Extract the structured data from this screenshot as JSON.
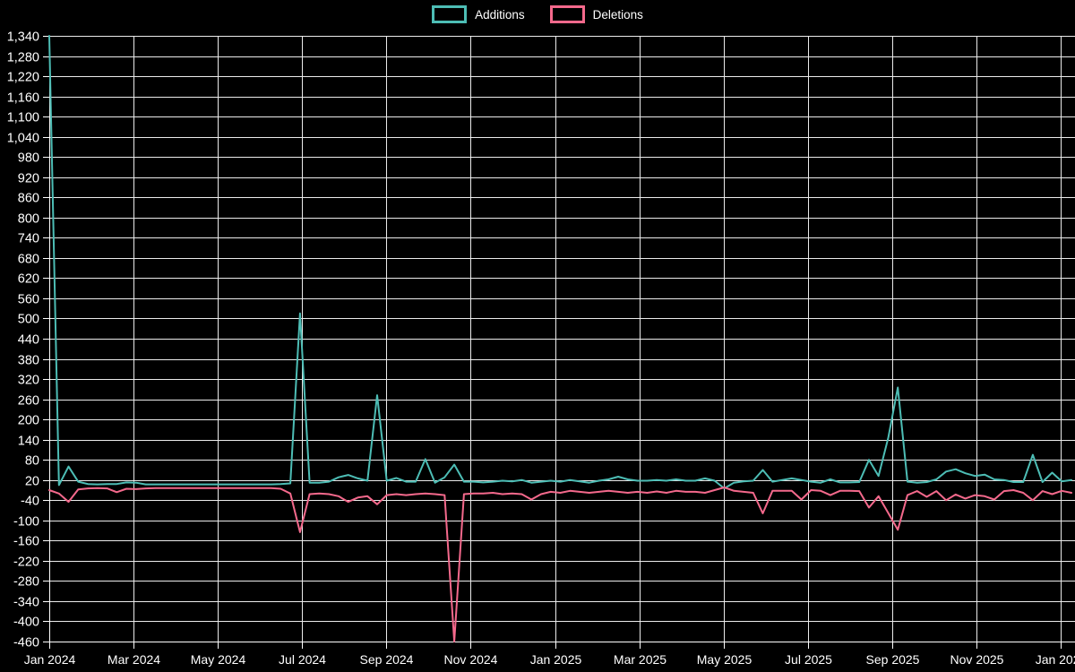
{
  "legend": {
    "items": [
      {
        "label": "Additions",
        "color": "#4dbdb5"
      },
      {
        "label": "Deletions",
        "color": "#f4698c"
      }
    ]
  },
  "chart_data": {
    "type": "line",
    "title": "",
    "xlabel": "",
    "ylabel": "",
    "x_unit": "weekly data points from Jan 2024 to Feb 2026",
    "x_tick_labels": [
      "Jan 2024",
      "Mar 2024",
      "May 2024",
      "Jul 2024",
      "Sep 2024",
      "Nov 2024",
      "Jan 2025",
      "Mar 2025",
      "May 2025",
      "Jul 2025",
      "Sep 2025",
      "Nov 2025",
      "Jan 2026"
    ],
    "y_ticks": [
      -460,
      -400,
      -340,
      -280,
      -220,
      -160,
      -100,
      -40,
      20,
      80,
      140,
      200,
      260,
      320,
      380,
      440,
      500,
      560,
      620,
      680,
      740,
      800,
      860,
      920,
      980,
      1040,
      1100,
      1160,
      1220,
      1280,
      1340
    ],
    "ylim": [
      -460,
      1340
    ],
    "grid": true,
    "legend_position": "top-center",
    "background": "#000000",
    "grid_color": "#ebebeb",
    "axis_color": "#ffffff",
    "text_color": "#ffffff",
    "series": [
      {
        "name": "Additions",
        "color": "#4dbdb5",
        "values": [
          1340,
          5,
          60,
          15,
          8,
          7,
          8,
          8,
          13,
          12,
          7,
          7,
          7,
          7,
          7,
          7,
          7,
          7,
          7,
          7,
          7,
          7,
          7,
          7,
          8,
          10,
          515,
          12,
          12,
          15,
          28,
          35,
          25,
          18,
          272,
          18,
          26,
          15,
          15,
          82,
          12,
          28,
          66,
          15,
          15,
          13,
          15,
          18,
          16,
          20,
          12,
          15,
          18,
          15,
          20,
          16,
          12,
          18,
          22,
          30,
          22,
          18,
          18,
          20,
          18,
          22,
          18,
          18,
          25,
          18,
          -5,
          12,
          16,
          18,
          50,
          15,
          20,
          25,
          20,
          15,
          12,
          22,
          13,
          13,
          14,
          80,
          32,
          145,
          295,
          15,
          12,
          14,
          22,
          45,
          52,
          40,
          32,
          36,
          22,
          20,
          14,
          14,
          95,
          14,
          42,
          16,
          20
        ]
      },
      {
        "name": "Deletions",
        "color": "#f4698c",
        "values": [
          -10,
          -20,
          -45,
          -8,
          -5,
          -4,
          -5,
          -16,
          -6,
          -7,
          -5,
          -4,
          -4,
          -4,
          -4,
          -4,
          -4,
          -4,
          -4,
          -4,
          -4,
          -4,
          -4,
          -4,
          -6,
          -20,
          -135,
          -22,
          -20,
          -22,
          -28,
          -45,
          -32,
          -28,
          -52,
          -25,
          -22,
          -25,
          -22,
          -20,
          -22,
          -25,
          -460,
          -22,
          -20,
          -20,
          -18,
          -22,
          -20,
          -22,
          -38,
          -22,
          -15,
          -18,
          -12,
          -15,
          -18,
          -15,
          -12,
          -15,
          -18,
          -15,
          -18,
          -14,
          -18,
          -12,
          -15,
          -15,
          -18,
          -10,
          -2,
          -12,
          -15,
          -18,
          -79,
          -12,
          -12,
          -12,
          -38,
          -10,
          -12,
          -25,
          -12,
          -12,
          -13,
          -62,
          -28,
          -78,
          -128,
          -25,
          -13,
          -30,
          -13,
          -40,
          -23,
          -35,
          -25,
          -28,
          -38,
          -13,
          -10,
          -18,
          -40,
          -13,
          -22,
          -12,
          -18
        ]
      }
    ]
  }
}
